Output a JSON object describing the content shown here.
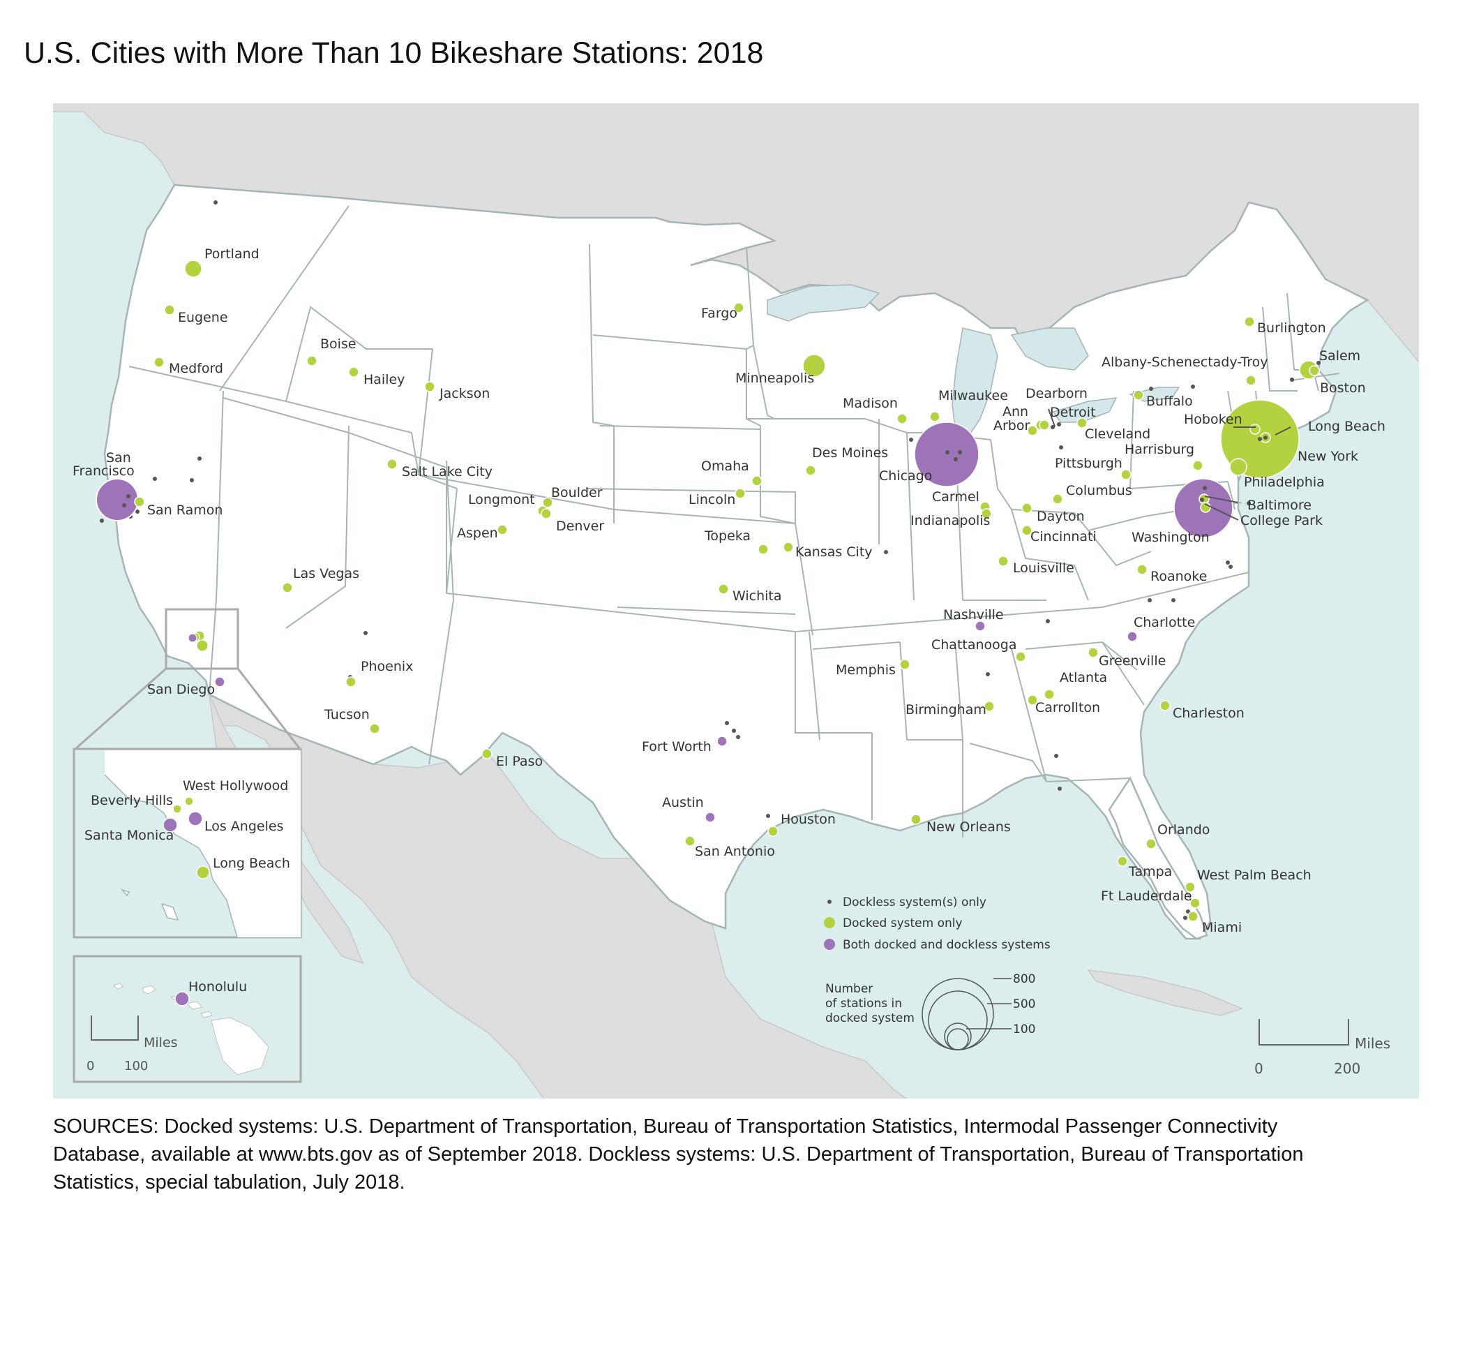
{
  "title": "U.S. Cities with More Than 10 Bikeshare Stations: 2018",
  "colors": {
    "ocean": "#dcedee",
    "land": "#ffffff",
    "foreign_land": "#dedede",
    "border": "#a7b4b6",
    "lake": "#d4e8ea",
    "docked": "#b3d240",
    "both": "#9e74b8",
    "dockless": "#555555"
  },
  "labels": [
    {
      "name": "Portland",
      "system": "docked",
      "size": "medium"
    },
    {
      "name": "Eugene",
      "system": "docked",
      "size": "small"
    },
    {
      "name": "Medford",
      "system": "docked",
      "size": "small"
    },
    {
      "name": "Boise",
      "system": "docked",
      "size": "small"
    },
    {
      "name": "Hailey",
      "system": "docked",
      "size": "small"
    },
    {
      "name": "Jackson",
      "system": "docked",
      "size": "small"
    },
    {
      "name": "Salt Lake City",
      "system": "docked",
      "size": "small"
    },
    {
      "name": "San",
      "system": "both",
      "size": "large"
    },
    {
      "name": "Francisco",
      "system": "both",
      "size": "large"
    },
    {
      "name": "San Ramon",
      "system": "docked",
      "size": "small"
    },
    {
      "name": "Las Vegas",
      "system": "docked",
      "size": "small"
    },
    {
      "name": "San Diego",
      "system": "both",
      "size": "small"
    },
    {
      "name": "Phoenix",
      "system": "docked",
      "size": "small"
    },
    {
      "name": "Tucson",
      "system": "docked",
      "size": "small"
    },
    {
      "name": "El Paso",
      "system": "docked",
      "size": "small"
    },
    {
      "name": "Fargo",
      "system": "docked",
      "size": "small"
    },
    {
      "name": "Minneapolis",
      "system": "docked",
      "size": "medium"
    },
    {
      "name": "Madison",
      "system": "docked",
      "size": "small"
    },
    {
      "name": "Milwaukee",
      "system": "docked",
      "size": "small"
    },
    {
      "name": "Des Moines",
      "system": "docked",
      "size": "small"
    },
    {
      "name": "Omaha",
      "system": "docked",
      "size": "small"
    },
    {
      "name": "Lincoln",
      "system": "docked",
      "size": "small"
    },
    {
      "name": "Longmont",
      "system": "docked",
      "size": "small"
    },
    {
      "name": "Boulder",
      "system": "docked",
      "size": "small"
    },
    {
      "name": "Denver",
      "system": "docked",
      "size": "small"
    },
    {
      "name": "Aspen",
      "system": "docked",
      "size": "small"
    },
    {
      "name": "Topeka",
      "system": "docked",
      "size": "small"
    },
    {
      "name": "Kansas City",
      "system": "docked",
      "size": "small"
    },
    {
      "name": "Wichita",
      "system": "docked",
      "size": "small"
    },
    {
      "name": "Chicago",
      "system": "both",
      "size": "large"
    },
    {
      "name": "Ann",
      "system": "docked",
      "size": "small"
    },
    {
      "name": "Arbor",
      "system": "docked",
      "size": "small"
    },
    {
      "name": "Dearborn",
      "system": "docked",
      "size": "small"
    },
    {
      "name": "Detroit",
      "system": "docked",
      "size": "small"
    },
    {
      "name": "Carmel",
      "system": "docked",
      "size": "small"
    },
    {
      "name": "Indianapolis",
      "system": "docked",
      "size": "small"
    },
    {
      "name": "Columbus",
      "system": "docked",
      "size": "small"
    },
    {
      "name": "Dayton",
      "system": "docked",
      "size": "small"
    },
    {
      "name": "Cincinnati",
      "system": "docked",
      "size": "small"
    },
    {
      "name": "Louisville",
      "system": "docked",
      "size": "small"
    },
    {
      "name": "Cleveland",
      "system": "docked",
      "size": "small"
    },
    {
      "name": "Pittsburgh",
      "system": "docked",
      "size": "small"
    },
    {
      "name": "Buffalo",
      "system": "docked",
      "size": "small"
    },
    {
      "name": "Albany-Schenectady-Troy",
      "system": "docked",
      "size": "small"
    },
    {
      "name": "Burlington",
      "system": "docked",
      "size": "small"
    },
    {
      "name": "Salem",
      "system": "docked",
      "size": "small"
    },
    {
      "name": "Boston",
      "system": "docked",
      "size": "medium"
    },
    {
      "name": "Hoboken",
      "system": "docked",
      "size": "small"
    },
    {
      "name": "Long Beach",
      "system": "docked",
      "size": "small"
    },
    {
      "name": "New York",
      "system": "docked",
      "size": "xlarge"
    },
    {
      "name": "Harrisburg",
      "system": "docked",
      "size": "small"
    },
    {
      "name": "Philadelphia",
      "system": "docked",
      "size": "medium"
    },
    {
      "name": "Baltimore",
      "system": "docked",
      "size": "small"
    },
    {
      "name": "College Park",
      "system": "docked",
      "size": "small"
    },
    {
      "name": "Washington",
      "system": "both",
      "size": "large"
    },
    {
      "name": "Roanoke",
      "system": "docked",
      "size": "small"
    },
    {
      "name": "Nashville",
      "system": "both",
      "size": "small"
    },
    {
      "name": "Charlotte",
      "system": "both",
      "size": "small"
    },
    {
      "name": "Chattanooga",
      "system": "docked",
      "size": "small"
    },
    {
      "name": "Greenville",
      "system": "docked",
      "size": "small"
    },
    {
      "name": "Memphis",
      "system": "docked",
      "size": "small"
    },
    {
      "name": "Atlanta",
      "system": "docked",
      "size": "small"
    },
    {
      "name": "Birmingham",
      "system": "docked",
      "size": "small"
    },
    {
      "name": "Carrollton",
      "system": "docked",
      "size": "small"
    },
    {
      "name": "Charleston",
      "system": "docked",
      "size": "small"
    },
    {
      "name": "Fort Worth",
      "system": "both",
      "size": "small"
    },
    {
      "name": "Austin",
      "system": "both",
      "size": "small"
    },
    {
      "name": "Houston",
      "system": "docked",
      "size": "small"
    },
    {
      "name": "San Antonio",
      "system": "docked",
      "size": "small"
    },
    {
      "name": "New Orleans",
      "system": "docked",
      "size": "small"
    },
    {
      "name": "Orlando",
      "system": "docked",
      "size": "small"
    },
    {
      "name": "Tampa",
      "system": "docked",
      "size": "small"
    },
    {
      "name": "West Palm Beach",
      "system": "docked",
      "size": "small"
    },
    {
      "name": "Ft Lauderdale",
      "system": "docked",
      "size": "small"
    },
    {
      "name": "Miami",
      "system": "docked",
      "size": "small"
    }
  ],
  "inset_la": {
    "cities": [
      {
        "name": "West Hollywood",
        "system": "docked"
      },
      {
        "name": "Beverly Hills",
        "system": "docked"
      },
      {
        "name": "Los Angeles",
        "system": "both"
      },
      {
        "name": "Santa Monica",
        "system": "both"
      },
      {
        "name": "Long Beach",
        "system": "docked"
      }
    ]
  },
  "inset_hawaii": {
    "city": {
      "name": "Honolulu",
      "system": "both"
    },
    "scale_label": "Miles",
    "scale_ticks": [
      "0",
      "100"
    ]
  },
  "legend": {
    "items": [
      {
        "label": "Dockless system(s) only",
        "key": "dockless"
      },
      {
        "label": "Docked system only",
        "key": "docked"
      },
      {
        "label": "Both docked and dockless systems",
        "key": "both"
      }
    ],
    "size_title": [
      "Number",
      "of stations in",
      "docked system"
    ],
    "size_values": [
      800,
      500,
      100
    ]
  },
  "scale_bar": {
    "label": "Miles",
    "ticks": [
      "0",
      "200"
    ]
  },
  "sources": {
    "lines": [
      "SOURCES: Docked systems: U.S. Department of Transportation, Bureau of Transportation Statistics, Intermodal Passenger Connectivity",
      "Database, available at www.bts.gov as of September 2018. Dockless systems: U.S. Department of Transportation, Bureau of Transportation",
      "Statistics, special tabulation, July 2018."
    ]
  }
}
